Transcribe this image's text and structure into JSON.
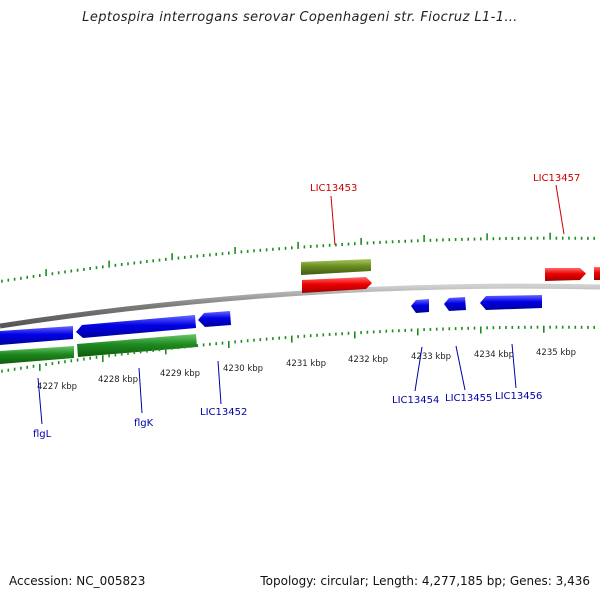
{
  "title": "Leptospira interrogans serovar Copenhageni str. Fiocruz L1-1…",
  "footer": {
    "accession": "Accession: NC_005823",
    "topology": "Topology: circular; Length: 4,277,185 bp; Genes: 3,436"
  },
  "colors": {
    "forward_gene": "#e60000",
    "reverse_gene": "#0000dd",
    "forward_cds": "#6b8e23",
    "reverse_cds": "#228b22",
    "tick": "#1e8c1e",
    "backbone": "#888888",
    "forward_label": "#cc0000",
    "reverse_label": "#0000aa"
  },
  "scale": {
    "tick_labels": [
      "4227 kbp",
      "4228 kbp",
      "4229 kbp",
      "4230 kbp",
      "4231 kbp",
      "4232 kbp",
      "4233 kbp",
      "4234 kbp",
      "4235 kbp"
    ]
  },
  "gene_labels": {
    "forward": [
      "LIC13453",
      "LIC13457"
    ],
    "reverse": [
      "flgL",
      "flgK",
      "LIC13452",
      "LIC13454",
      "LIC13455",
      "LIC13456"
    ]
  }
}
